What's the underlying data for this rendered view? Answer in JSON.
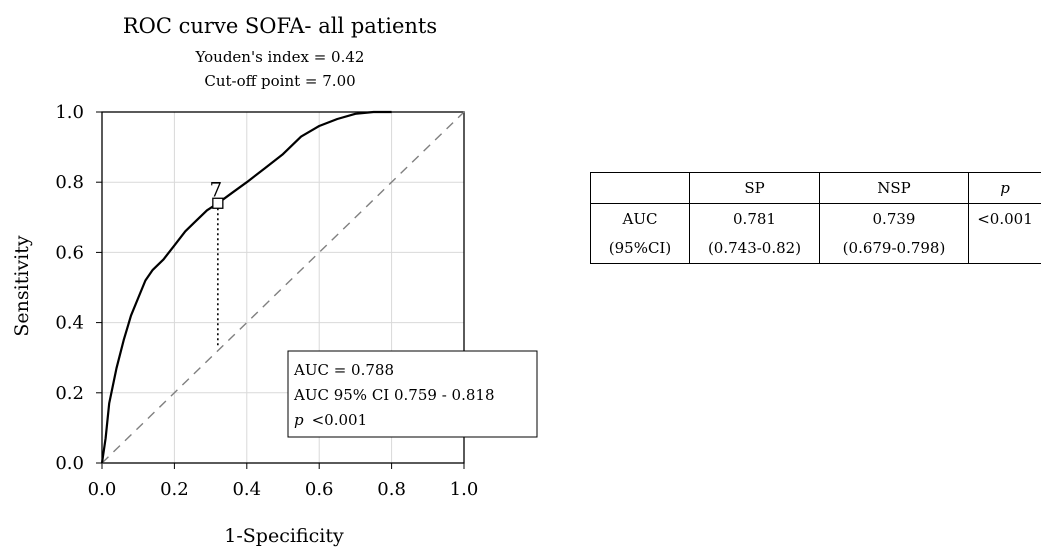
{
  "chart_data": {
    "type": "line",
    "title": "ROC curve SOFA- all patients",
    "subtitle_lines": [
      "Youden's index = 0.42",
      "Cut-off point = 7.00"
    ],
    "xlabel": "1-Specificity",
    "ylabel": "Sensitivity",
    "xlim": [
      0,
      1
    ],
    "ylim": [
      0,
      1
    ],
    "x_ticks": [
      "0.0",
      "0.2",
      "0.4",
      "0.6",
      "0.8",
      "1.0"
    ],
    "y_ticks": [
      "0.0",
      "0.2",
      "0.4",
      "0.6",
      "0.8",
      "1.0"
    ],
    "grid": true,
    "series": [
      {
        "x": [
          0,
          0.01,
          0.02,
          0.04,
          0.06,
          0.08,
          0.1,
          0.12,
          0.14,
          0.17,
          0.2,
          0.23,
          0.26,
          0.29,
          0.32,
          0.36,
          0.4,
          0.45,
          0.5,
          0.55,
          0.6,
          0.65,
          0.7,
          0.75,
          0.8
        ],
        "y": [
          0,
          0.07,
          0.17,
          0.27,
          0.35,
          0.42,
          0.47,
          0.52,
          0.55,
          0.58,
          0.62,
          0.66,
          0.69,
          0.72,
          0.74,
          0.77,
          0.8,
          0.84,
          0.88,
          0.93,
          0.96,
          0.98,
          0.995,
          1.0,
          1.0
        ]
      }
    ],
    "reference_line": {
      "x": [
        0,
        1
      ],
      "y": [
        0,
        1
      ]
    },
    "cutoff": {
      "label": "7",
      "x": 0.32,
      "y": 0.74,
      "drop_to_y": 0.33
    },
    "annotation": {
      "auc": "AUC = 0.788",
      "ci": "AUC 95% CI 0.759 - 0.818",
      "p_symbol": "p",
      "p_value": "<0.001",
      "placement": "bottom-right"
    }
  },
  "table": {
    "headers": [
      "",
      "SP",
      "NSP",
      "p"
    ],
    "auc_row": [
      "AUC",
      "0.781",
      "0.739",
      "<0.001"
    ],
    "ci_row": [
      "(95%CI)",
      "(0.743-0.82)",
      "(0.679-0.798)",
      ""
    ]
  }
}
